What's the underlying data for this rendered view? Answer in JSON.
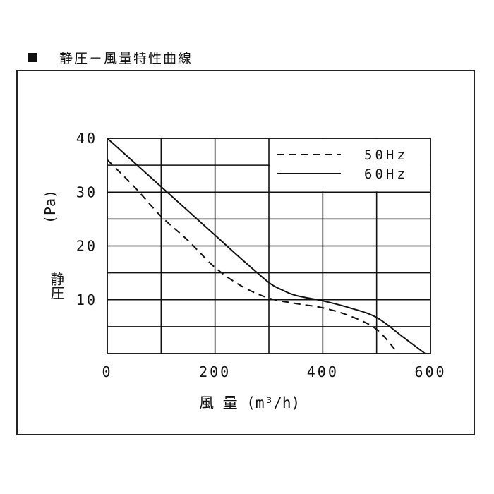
{
  "chart_data": {
    "type": "line",
    "title": "静圧－風量特性曲線",
    "xlabel": "風 量 (m³/h)",
    "ylabel": "静圧 (Pa)",
    "ylabel_kanji": "静圧",
    "ylabel_unit": "(Pa)",
    "xlim": [
      0,
      600
    ],
    "ylim": [
      0,
      40
    ],
    "x_ticks": [
      0,
      200,
      400,
      600
    ],
    "y_ticks": [
      10,
      20,
      30,
      40
    ],
    "x_tick_labels": [
      "0",
      "200",
      "400",
      "600"
    ],
    "y_tick_labels": [
      "10",
      "20",
      "30",
      "40"
    ],
    "x_grid": [
      100,
      200,
      300,
      400,
      500
    ],
    "y_grid": [
      5,
      10,
      15,
      20,
      25,
      30,
      35
    ],
    "grid": true,
    "legend_position": "top-right",
    "series": [
      {
        "name": "50Hz",
        "style": "dashed",
        "x": [
          0,
          50,
          100,
          150,
          200,
          250,
          300,
          350,
          400,
          450,
          500,
          540
        ],
        "y": [
          36,
          31,
          25.5,
          21,
          16,
          12.5,
          10.3,
          9.3,
          8.5,
          7,
          4.5,
          0
        ]
      },
      {
        "name": "60Hz",
        "style": "solid",
        "x": [
          0,
          50,
          100,
          150,
          200,
          250,
          300,
          325,
          350,
          400,
          450,
          500,
          550,
          590
        ],
        "y": [
          40,
          35.5,
          31,
          26.5,
          22,
          17.5,
          13.2,
          11.8,
          10.8,
          9.8,
          8.5,
          6.7,
          3,
          0
        ]
      }
    ]
  },
  "colors": {
    "line": "#111111",
    "grid": "#111111",
    "frame": "#222222",
    "background": "#ffffff"
  }
}
